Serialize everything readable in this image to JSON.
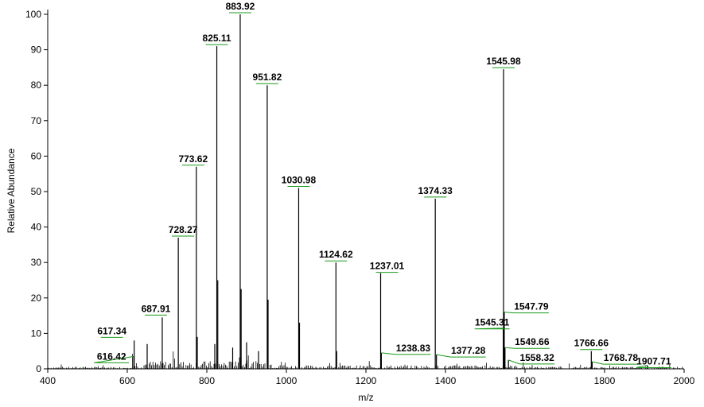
{
  "chart_data": {
    "type": "bar",
    "title": "",
    "xlabel": "m/z",
    "ylabel": "Relative Abundance",
    "xlim": [
      400,
      2000
    ],
    "ylim": [
      0,
      100
    ],
    "xticks": [
      400,
      600,
      800,
      1000,
      1200,
      1400,
      1600,
      1800,
      2000
    ],
    "yticks": [
      0,
      10,
      20,
      30,
      40,
      50,
      60,
      70,
      80,
      90,
      100
    ],
    "grid": false,
    "legend": "none",
    "peaks": [
      {
        "mz": 616.42,
        "intensity": 3.5,
        "label": "616.42"
      },
      {
        "mz": 617.34,
        "intensity": 8.0,
        "label": "617.34"
      },
      {
        "mz": 650.0,
        "intensity": 7.0,
        "label": ""
      },
      {
        "mz": 687.91,
        "intensity": 14.5,
        "label": "687.91"
      },
      {
        "mz": 728.27,
        "intensity": 37.0,
        "label": "728.27"
      },
      {
        "mz": 773.62,
        "intensity": 57.0,
        "label": "773.62"
      },
      {
        "mz": 776.0,
        "intensity": 9.0,
        "label": ""
      },
      {
        "mz": 820.0,
        "intensity": 7.0,
        "label": ""
      },
      {
        "mz": 825.11,
        "intensity": 91.0,
        "label": "825.11"
      },
      {
        "mz": 827.5,
        "intensity": 25.0,
        "label": ""
      },
      {
        "mz": 865.0,
        "intensity": 6.0,
        "label": ""
      },
      {
        "mz": 883.92,
        "intensity": 100.0,
        "label": "883.92"
      },
      {
        "mz": 886.3,
        "intensity": 22.5,
        "label": ""
      },
      {
        "mz": 900.0,
        "intensity": 7.5,
        "label": ""
      },
      {
        "mz": 930.0,
        "intensity": 5.0,
        "label": ""
      },
      {
        "mz": 951.82,
        "intensity": 80.0,
        "label": "951.82"
      },
      {
        "mz": 954.0,
        "intensity": 19.5,
        "label": ""
      },
      {
        "mz": 1030.98,
        "intensity": 51.0,
        "label": "1030.98"
      },
      {
        "mz": 1033.0,
        "intensity": 13.0,
        "label": ""
      },
      {
        "mz": 1124.62,
        "intensity": 30.0,
        "label": "1124.62"
      },
      {
        "mz": 1126.5,
        "intensity": 5.0,
        "label": ""
      },
      {
        "mz": 1237.01,
        "intensity": 27.0,
        "label": "1237.01"
      },
      {
        "mz": 1238.83,
        "intensity": 4.5,
        "label": "1238.83"
      },
      {
        "mz": 1374.33,
        "intensity": 48.0,
        "label": "1374.33"
      },
      {
        "mz": 1377.28,
        "intensity": 4.0,
        "label": "1377.28"
      },
      {
        "mz": 1545.31,
        "intensity": 11.5,
        "label": "1545.31"
      },
      {
        "mz": 1545.98,
        "intensity": 84.5,
        "label": "1545.98"
      },
      {
        "mz": 1547.79,
        "intensity": 16.0,
        "label": "1547.79"
      },
      {
        "mz": 1549.66,
        "intensity": 6.0,
        "label": "1549.66"
      },
      {
        "mz": 1558.32,
        "intensity": 2.5,
        "label": "1558.32"
      },
      {
        "mz": 1766.66,
        "intensity": 5.0,
        "label": "1766.66"
      },
      {
        "mz": 1768.78,
        "intensity": 2.0,
        "label": "1768.78"
      },
      {
        "mz": 1907.71,
        "intensity": 1.0,
        "label": "1907.71"
      }
    ]
  }
}
